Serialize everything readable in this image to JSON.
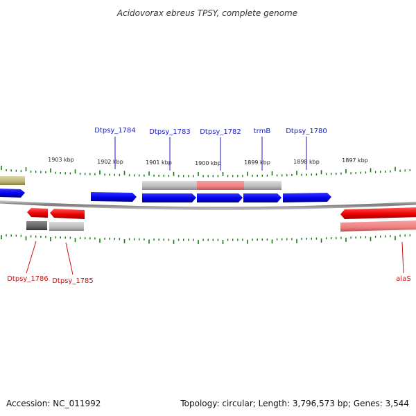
{
  "title": "Acidovorax ebreus TPSY, complete genome",
  "accession": "Accession: NC_011992",
  "topology": "Topology: circular; Length: 3,796,573 bp; Genes: 3,544",
  "colors": {
    "forward": "#0000ff",
    "reverse": "#ff0000",
    "tick": "#117711",
    "backbone": "#808080",
    "gene_label_forward": "#1a1acc",
    "gene_label_reverse": "#cc1111"
  },
  "ticks": [
    {
      "label": "1903 kbp"
    },
    {
      "label": "1902 kbp"
    },
    {
      "label": "1901 kbp"
    },
    {
      "label": "1900 kbp"
    },
    {
      "label": "1899 kbp"
    },
    {
      "label": "1898 kbp"
    },
    {
      "label": "1897 kbp"
    }
  ],
  "gene_labels": [
    {
      "text": "Dtpsy_1784",
      "strand": "forward"
    },
    {
      "text": "Dtpsy_1783",
      "strand": "forward"
    },
    {
      "text": "Dtpsy_1782",
      "strand": "forward"
    },
    {
      "text": "trmB",
      "strand": "forward"
    },
    {
      "text": "Dtpsy_1780",
      "strand": "forward"
    },
    {
      "text": "Dtpsy_1786",
      "strand": "reverse"
    },
    {
      "text": "Dtpsy_1785",
      "strand": "reverse"
    },
    {
      "text": "alaS",
      "strand": "reverse"
    }
  ]
}
